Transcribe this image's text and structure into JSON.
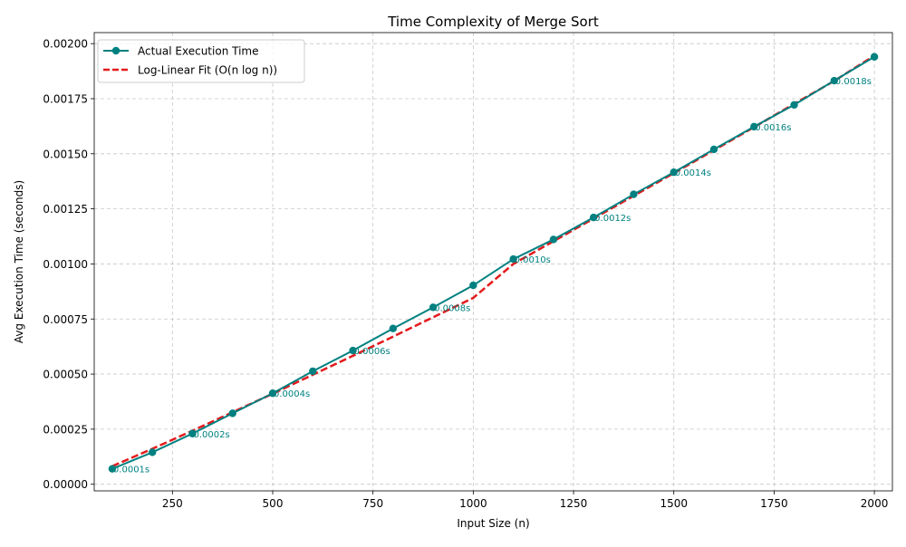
{
  "chart_data": {
    "type": "line",
    "title": "Time Complexity of Merge Sort",
    "xlabel": "Input Size (n)",
    "ylabel": "Avg Execution Time (seconds)",
    "xlim": [
      55,
      2045
    ],
    "ylim": [
      -3e-05,
      0.00205
    ],
    "x_ticks": [
      250,
      500,
      750,
      1000,
      1250,
      1500,
      1750,
      2000
    ],
    "x_tick_labels": [
      "250",
      "500",
      "750",
      "1000",
      "1250",
      "1500",
      "1750",
      "2000"
    ],
    "y_ticks": [
      0,
      0.00025,
      0.0005,
      0.00075,
      0.001,
      0.00125,
      0.0015,
      0.00175,
      0.002
    ],
    "y_tick_labels": [
      "0.00000",
      "0.00025",
      "0.00050",
      "0.00075",
      "0.00100",
      "0.00125",
      "0.00150",
      "0.00175",
      "0.00200"
    ],
    "grid": true,
    "legend_position": "top-left",
    "x": [
      100,
      200,
      300,
      400,
      500,
      600,
      700,
      800,
      900,
      1000,
      1100,
      1200,
      1300,
      1400,
      1500,
      1600,
      1700,
      1800,
      1900,
      2000
    ],
    "series": [
      {
        "name": "Actual Execution Time",
        "color": "#008080",
        "style": "solid-with-markers",
        "values": [
          7e-05,
          0.000145,
          0.00023,
          0.000322,
          0.000413,
          0.000513,
          0.000607,
          0.000707,
          0.000803,
          0.000903,
          0.001022,
          0.001111,
          0.001211,
          0.001316,
          0.001416,
          0.00152,
          0.001623,
          0.001722,
          0.001832,
          0.00194
        ]
      },
      {
        "name": "Log-Linear Fit (O(n log n))",
        "color": "#e31a1c",
        "style": "dashed",
        "values": [
          8.2e-05,
          0.000161,
          0.000243,
          0.000327,
          0.000411,
          0.000497,
          0.000583,
          0.00067,
          0.000758,
          0.000846,
          0.001,
          0.001103,
          0.001206,
          0.001309,
          0.001412,
          0.001516,
          0.001621,
          0.001726,
          0.001831,
          0.001945
        ]
      }
    ],
    "annotations": [
      {
        "x": 100,
        "y": 7e-05,
        "text": "0.0001s"
      },
      {
        "x": 300,
        "y": 0.00023,
        "text": "0.0002s"
      },
      {
        "x": 500,
        "y": 0.000413,
        "text": "0.0004s"
      },
      {
        "x": 700,
        "y": 0.000607,
        "text": "0.0006s"
      },
      {
        "x": 900,
        "y": 0.000803,
        "text": "0.0008s"
      },
      {
        "x": 1100,
        "y": 0.001022,
        "text": "0.0010s"
      },
      {
        "x": 1300,
        "y": 0.001211,
        "text": "0.0012s"
      },
      {
        "x": 1500,
        "y": 0.001416,
        "text": "0.0014s"
      },
      {
        "x": 1700,
        "y": 0.001623,
        "text": "0.0016s"
      },
      {
        "x": 1900,
        "y": 0.001832,
        "text": "0.0018s"
      }
    ]
  }
}
